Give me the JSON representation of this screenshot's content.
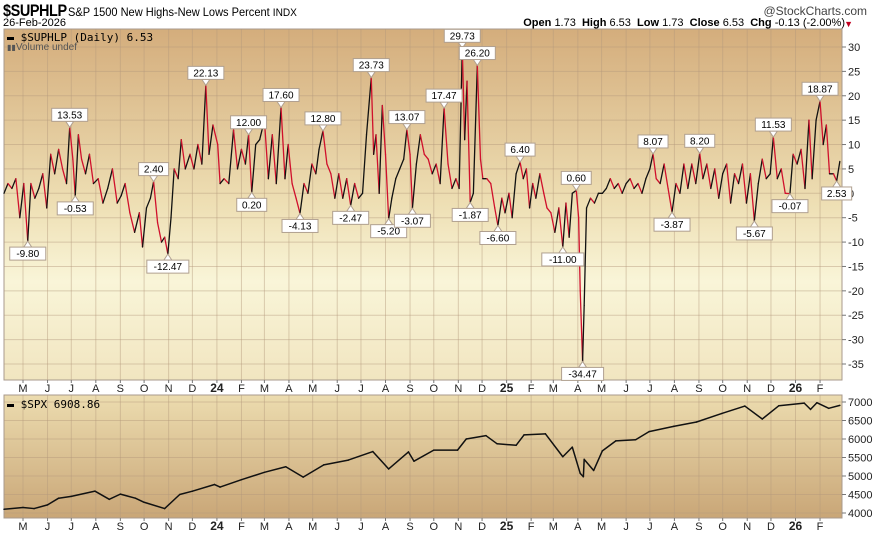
{
  "header": {
    "symbol": "$SUPHLP",
    "description": "S&P 1500 New Highs-New Lows Percent",
    "exchange": "INDX",
    "brand": "@StockCharts.com",
    "date": "26-Feb-2026",
    "open_label": "Open",
    "open": "1.73",
    "high_label": "High",
    "high": "6.53",
    "low_label": "Low",
    "low": "1.73",
    "close_label": "Close",
    "close": "6.53",
    "chg_label": "Chg",
    "chg": "-0.13 (-2.00%)",
    "chg_direction": "down"
  },
  "colors": {
    "up": "#111111",
    "down": "#d0102c",
    "spx": "#111111",
    "panel_top": "#d4ad7c",
    "panel_pale": "#f8f4d6"
  },
  "chart_data": [
    {
      "type": "line",
      "legend": "$SUPHLP (Daily) 6.53",
      "volume_legend": "Volume undef",
      "ylim": [
        -37,
        32
      ],
      "yticks": [
        30,
        25,
        20,
        15,
        10,
        5,
        0,
        -5,
        -10,
        -15,
        -20,
        -25,
        -30,
        -35
      ],
      "grid": true,
      "y_axis_side": "right",
      "x": [
        "2023-04-07",
        "2023-04-12",
        "2023-04-17",
        "2023-04-22",
        "2023-04-27",
        "2023-05-02",
        "2023-05-07",
        "2023-05-11",
        "2023-05-16",
        "2023-05-21",
        "2023-05-26",
        "2023-05-31",
        "2023-06-05",
        "2023-06-10",
        "2023-06-15",
        "2023-06-20",
        "2023-06-25",
        "2023-06-29",
        "2023-07-03",
        "2023-07-06",
        "2023-07-10",
        "2023-07-14",
        "2023-07-19",
        "2023-07-24",
        "2023-07-29",
        "2023-08-04",
        "2023-08-10",
        "2023-08-16",
        "2023-08-22",
        "2023-08-28",
        "2023-09-02",
        "2023-09-07",
        "2023-09-13",
        "2023-09-19",
        "2023-09-25",
        "2023-09-29",
        "2023-10-04",
        "2023-10-09",
        "2023-10-13",
        "2023-10-18",
        "2023-10-23",
        "2023-10-27",
        "2023-10-31",
        "2023-11-04",
        "2023-11-08",
        "2023-11-13",
        "2023-11-17",
        "2023-11-22",
        "2023-11-28",
        "2023-12-03",
        "2023-12-08",
        "2023-12-13",
        "2023-12-18",
        "2023-12-22",
        "2023-12-27",
        "2024-01-02",
        "2024-01-05",
        "2024-01-10",
        "2024-01-16",
        "2024-01-22",
        "2024-01-27",
        "2024-02-01",
        "2024-02-06",
        "2024-02-10",
        "2024-02-14",
        "2024-02-19",
        "2024-02-24",
        "2024-03-01",
        "2024-03-06",
        "2024-03-11",
        "2024-03-16",
        "2024-03-22",
        "2024-03-27",
        "2024-03-31",
        "2024-04-05",
        "2024-04-10",
        "2024-04-15",
        "2024-04-20",
        "2024-04-25",
        "2024-04-30",
        "2024-05-05",
        "2024-05-09",
        "2024-05-14",
        "2024-05-19",
        "2024-05-24",
        "2024-05-29",
        "2024-06-03",
        "2024-06-08",
        "2024-06-13",
        "2024-06-18",
        "2024-06-23",
        "2024-06-28",
        "2024-07-03",
        "2024-07-08",
        "2024-07-14",
        "2024-07-17",
        "2024-07-20",
        "2024-07-24",
        "2024-07-28",
        "2024-08-01",
        "2024-08-05",
        "2024-08-09",
        "2024-08-14",
        "2024-08-19",
        "2024-08-24",
        "2024-08-28",
        "2024-09-01",
        "2024-09-04",
        "2024-09-09",
        "2024-09-14",
        "2024-09-19",
        "2024-09-24",
        "2024-09-29",
        "2024-10-04",
        "2024-10-09",
        "2024-10-14",
        "2024-10-19",
        "2024-10-24",
        "2024-10-29",
        "2024-11-02",
        "2024-11-06",
        "2024-11-09",
        "2024-11-12",
        "2024-11-16",
        "2024-11-20",
        "2024-11-25",
        "2024-11-29",
        "2024-12-02",
        "2024-12-07",
        "2024-12-12",
        "2024-12-17",
        "2024-12-21",
        "2024-12-26",
        "2024-12-30",
        "2025-01-04",
        "2025-01-08",
        "2025-01-13",
        "2025-01-18",
        "2025-01-22",
        "2025-01-26",
        "2025-01-30",
        "2025-02-03",
        "2025-02-07",
        "2025-02-12",
        "2025-02-17",
        "2025-02-21",
        "2025-02-26",
        "2025-03-03",
        "2025-03-08",
        "2025-03-13",
        "2025-03-17",
        "2025-03-21",
        "2025-03-25",
        "2025-03-30",
        "2025-04-02",
        "2025-04-04",
        "2025-04-07",
        "2025-04-09",
        "2025-04-12",
        "2025-04-17",
        "2025-04-22",
        "2025-04-27",
        "2025-05-02",
        "2025-05-07",
        "2025-05-12",
        "2025-05-17",
        "2025-05-22",
        "2025-05-27",
        "2025-06-01",
        "2025-06-06",
        "2025-06-11",
        "2025-06-16",
        "2025-06-21",
        "2025-06-26",
        "2025-07-01",
        "2025-07-05",
        "2025-07-09",
        "2025-07-14",
        "2025-07-19",
        "2025-07-24",
        "2025-07-29",
        "2025-08-03",
        "2025-08-08",
        "2025-08-13",
        "2025-08-18",
        "2025-08-23",
        "2025-08-28",
        "2025-09-02",
        "2025-09-06",
        "2025-09-11",
        "2025-09-16",
        "2025-09-21",
        "2025-09-26",
        "2025-10-01",
        "2025-10-06",
        "2025-10-11",
        "2025-10-16",
        "2025-10-21",
        "2025-10-26",
        "2025-10-31",
        "2025-11-05",
        "2025-11-10",
        "2025-11-15",
        "2025-11-20",
        "2025-11-25",
        "2025-11-30",
        "2025-12-04",
        "2025-12-09",
        "2025-12-14",
        "2025-12-19",
        "2025-12-25",
        "2025-12-29",
        "2026-01-03",
        "2026-01-08",
        "2026-01-13",
        "2026-01-18",
        "2026-01-22",
        "2026-01-27",
        "2026-02-01",
        "2026-02-05",
        "2026-02-09",
        "2026-02-13",
        "2026-02-18",
        "2026-02-22",
        "2026-02-26"
      ],
      "values": [
        0,
        2,
        1,
        3,
        -5,
        2,
        -9.8,
        2,
        -1,
        1,
        4,
        -3,
        8,
        4,
        9,
        5,
        2,
        13.53,
        7,
        -0.53,
        12,
        7,
        4,
        8,
        2,
        3,
        -2,
        1,
        5,
        -2,
        -0.5,
        2,
        -4,
        -8,
        -4,
        -11,
        -3,
        -1,
        2.4,
        -6,
        -10,
        -9,
        -12.47,
        -5,
        5,
        3,
        11,
        5,
        8,
        5,
        10,
        6,
        22.13,
        8,
        14,
        10,
        2,
        3,
        2,
        13,
        5,
        9,
        6,
        12,
        0.2,
        10,
        11,
        15,
        3,
        12,
        2,
        17.6,
        3,
        10,
        2,
        -1,
        -4.13,
        2,
        0,
        6,
        4,
        9,
        12.8,
        6,
        4,
        -1,
        4,
        -1,
        3,
        -2.47,
        2,
        -1,
        0,
        12,
        23.73,
        8,
        12,
        0,
        18,
        8,
        -5.2,
        -1,
        3,
        5,
        7,
        13.07,
        8,
        -3.07,
        6,
        12,
        8,
        7,
        4,
        6,
        2,
        17.47,
        6,
        1,
        3,
        1,
        29.73,
        11,
        23,
        -1.87,
        0,
        26.2,
        7,
        3,
        3,
        2,
        -3,
        -6.6,
        -1,
        -4,
        0,
        -5,
        4,
        6.4,
        3,
        5,
        -3,
        2,
        -1,
        4,
        0,
        -3,
        -4,
        -8,
        -3,
        -11,
        -2,
        -9,
        0,
        0.6,
        -5,
        -20,
        -34.47,
        -23,
        -3,
        -1,
        -2,
        0,
        0,
        1,
        3,
        1,
        2,
        0,
        2,
        3,
        1,
        2,
        0,
        3,
        5,
        8.07,
        3,
        2,
        6,
        1,
        -3.87,
        2,
        0,
        6,
        1,
        6,
        2,
        8.2,
        3,
        6,
        1,
        5,
        -1,
        4,
        6,
        -2,
        4,
        2,
        6,
        -2,
        4,
        -5.67,
        2,
        7,
        3,
        4,
        11.53,
        3,
        5,
        0,
        -0.07,
        8,
        6,
        9,
        1,
        15,
        3,
        15,
        18.87,
        10,
        14,
        4,
        4,
        2.53,
        6.53
      ],
      "annotations": [
        {
          "date": "2023-05-07",
          "label": "-9.80",
          "side": "below"
        },
        {
          "date": "2023-06-29",
          "label": "13.53",
          "side": "above"
        },
        {
          "date": "2023-07-06",
          "label": "-0.53",
          "side": "below"
        },
        {
          "date": "2023-10-13",
          "label": "2.40",
          "side": "above"
        },
        {
          "date": "2023-10-31",
          "label": "-12.47",
          "side": "below"
        },
        {
          "date": "2023-12-18",
          "label": "22.13",
          "side": "above"
        },
        {
          "date": "2024-02-10",
          "label": "12.00",
          "side": "above"
        },
        {
          "date": "2024-02-14",
          "label": "0.20",
          "side": "below"
        },
        {
          "date": "2024-03-22",
          "label": "17.60",
          "side": "above"
        },
        {
          "date": "2024-04-15",
          "label": "-4.13",
          "side": "below"
        },
        {
          "date": "2024-05-14",
          "label": "12.80",
          "side": "above"
        },
        {
          "date": "2024-06-18",
          "label": "-2.47",
          "side": "below"
        },
        {
          "date": "2024-07-14",
          "label": "23.73",
          "side": "above"
        },
        {
          "date": "2024-08-05",
          "label": "-5.20",
          "side": "below"
        },
        {
          "date": "2024-08-28",
          "label": "13.07",
          "side": "above"
        },
        {
          "date": "2024-09-04",
          "label": "-3.07",
          "side": "below"
        },
        {
          "date": "2024-10-14",
          "label": "17.47",
          "side": "above"
        },
        {
          "date": "2024-11-06",
          "label": "29.73",
          "side": "above"
        },
        {
          "date": "2024-11-16",
          "label": "-1.87",
          "side": "below"
        },
        {
          "date": "2024-11-25",
          "label": "26.20",
          "side": "above"
        },
        {
          "date": "2024-12-21",
          "label": "-6.60",
          "side": "below"
        },
        {
          "date": "2025-01-18",
          "label": "6.40",
          "side": "above"
        },
        {
          "date": "2025-03-13",
          "label": "-11.00",
          "side": "below"
        },
        {
          "date": "2025-03-30",
          "label": "0.60",
          "side": "above"
        },
        {
          "date": "2025-04-07",
          "label": "-34.47",
          "side": "below"
        },
        {
          "date": "2025-07-05",
          "label": "8.07",
          "side": "above"
        },
        {
          "date": "2025-07-29",
          "label": "-3.87",
          "side": "below"
        },
        {
          "date": "2025-09-02",
          "label": "8.20",
          "side": "above"
        },
        {
          "date": "2025-11-10",
          "label": "-5.67",
          "side": "below"
        },
        {
          "date": "2025-12-04",
          "label": "11.53",
          "side": "above"
        },
        {
          "date": "2025-12-25",
          "label": "-0.07",
          "side": "below"
        },
        {
          "date": "2026-02-01",
          "label": "18.87",
          "side": "above"
        },
        {
          "date": "2026-02-22",
          "label": "2.53",
          "side": "below"
        }
      ]
    },
    {
      "type": "line",
      "legend": "$SPX 6908.86",
      "ylim": [
        3900,
        7080
      ],
      "yticks": [
        7000,
        6500,
        6000,
        5500,
        5000,
        4500,
        4000
      ],
      "grid": true,
      "y_axis_side": "right",
      "x": [
        "2023-04-07",
        "2023-05-01",
        "2023-05-15",
        "2023-06-01",
        "2023-06-15",
        "2023-07-01",
        "2023-07-31",
        "2023-08-18",
        "2023-09-01",
        "2023-09-20",
        "2023-10-01",
        "2023-10-27",
        "2023-11-15",
        "2023-12-01",
        "2023-12-29",
        "2024-01-05",
        "2024-02-01",
        "2024-03-01",
        "2024-03-28",
        "2024-04-19",
        "2024-05-15",
        "2024-06-15",
        "2024-07-16",
        "2024-08-05",
        "2024-08-30",
        "2024-09-06",
        "2024-10-01",
        "2024-10-31",
        "2024-11-11",
        "2024-12-06",
        "2024-12-20",
        "2025-01-13",
        "2025-01-23",
        "2025-02-19",
        "2025-03-13",
        "2025-03-25",
        "2025-04-04",
        "2025-04-08",
        "2025-04-09",
        "2025-04-21",
        "2025-05-02",
        "2025-05-19",
        "2025-06-13",
        "2025-06-30",
        "2025-07-31",
        "2025-08-29",
        "2025-09-30",
        "2025-10-29",
        "2025-11-20",
        "2025-12-11",
        "2026-01-12",
        "2026-01-20",
        "2026-01-28",
        "2026-02-12",
        "2026-02-26"
      ],
      "values": [
        4100,
        4150,
        4120,
        4220,
        4400,
        4450,
        4590,
        4370,
        4510,
        4400,
        4290,
        4120,
        4500,
        4590,
        4770,
        4700,
        4900,
        5100,
        5250,
        4970,
        5300,
        5430,
        5660,
        5190,
        5650,
        5400,
        5700,
        5700,
        6000,
        6090,
        5870,
        5830,
        6110,
        6140,
        5520,
        5780,
        5070,
        4980,
        5450,
        5150,
        5680,
        5950,
        5980,
        6200,
        6340,
        6460,
        6690,
        6890,
        6540,
        6900,
        6970,
        6800,
        6980,
        6830,
        6908.86
      ]
    }
  ],
  "x_axis": {
    "months": [
      {
        "date": "2023-05-01",
        "label": "M"
      },
      {
        "date": "2023-06-01",
        "label": "J"
      },
      {
        "date": "2023-07-01",
        "label": "J"
      },
      {
        "date": "2023-08-01",
        "label": "A"
      },
      {
        "date": "2023-09-01",
        "label": "S"
      },
      {
        "date": "2023-10-01",
        "label": "O"
      },
      {
        "date": "2023-11-01",
        "label": "N"
      },
      {
        "date": "2023-12-01",
        "label": "D"
      },
      {
        "date": "2024-01-01",
        "label": "24",
        "year": true
      },
      {
        "date": "2024-02-01",
        "label": "F"
      },
      {
        "date": "2024-03-01",
        "label": "M"
      },
      {
        "date": "2024-04-01",
        "label": "A"
      },
      {
        "date": "2024-05-01",
        "label": "M"
      },
      {
        "date": "2024-06-01",
        "label": "J"
      },
      {
        "date": "2024-07-01",
        "label": "J"
      },
      {
        "date": "2024-08-01",
        "label": "A"
      },
      {
        "date": "2024-09-01",
        "label": "S"
      },
      {
        "date": "2024-10-01",
        "label": "O"
      },
      {
        "date": "2024-11-01",
        "label": "N"
      },
      {
        "date": "2024-12-01",
        "label": "D"
      },
      {
        "date": "2025-01-01",
        "label": "25",
        "year": true
      },
      {
        "date": "2025-02-01",
        "label": "F"
      },
      {
        "date": "2025-03-01",
        "label": "M"
      },
      {
        "date": "2025-04-01",
        "label": "A"
      },
      {
        "date": "2025-05-01",
        "label": "M"
      },
      {
        "date": "2025-06-01",
        "label": "J"
      },
      {
        "date": "2025-07-01",
        "label": "J"
      },
      {
        "date": "2025-08-01",
        "label": "A"
      },
      {
        "date": "2025-09-01",
        "label": "S"
      },
      {
        "date": "2025-10-01",
        "label": "O"
      },
      {
        "date": "2025-11-01",
        "label": "N"
      },
      {
        "date": "2025-12-01",
        "label": "D"
      },
      {
        "date": "2026-01-01",
        "label": "26",
        "year": true
      },
      {
        "date": "2026-02-01",
        "label": "F"
      }
    ]
  }
}
